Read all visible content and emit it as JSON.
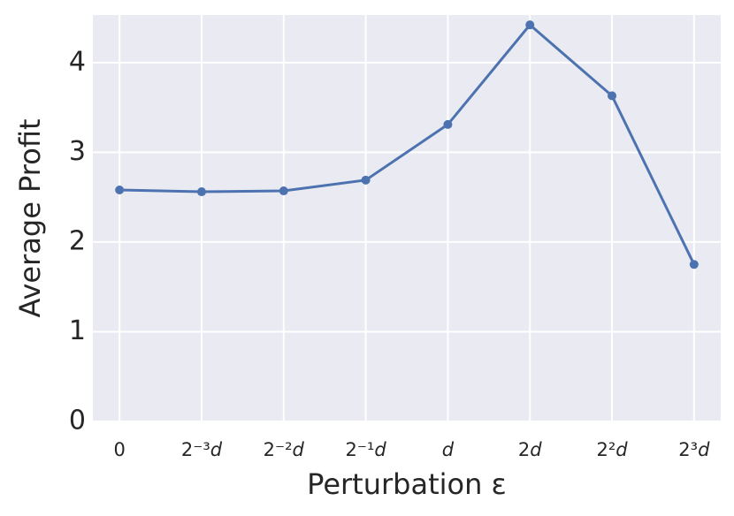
{
  "chart_data": {
    "type": "line",
    "categories": [
      "0",
      "2⁻³d",
      "2⁻²d",
      "2⁻¹d",
      "d",
      "2d",
      "2²d",
      "2³d"
    ],
    "series": [
      {
        "name": "Average Profit",
        "color": "#4c72b0",
        "values": [
          2.58,
          2.56,
          2.57,
          2.69,
          3.31,
          4.42,
          3.63,
          1.75
        ]
      }
    ],
    "x_label": "Perturbation ε",
    "y_label": "Average Profit",
    "ylim": [
      0,
      4.53
    ],
    "yticks": [
      0,
      1,
      2,
      3,
      4
    ],
    "grid": true,
    "background": "#eaeaf2"
  }
}
